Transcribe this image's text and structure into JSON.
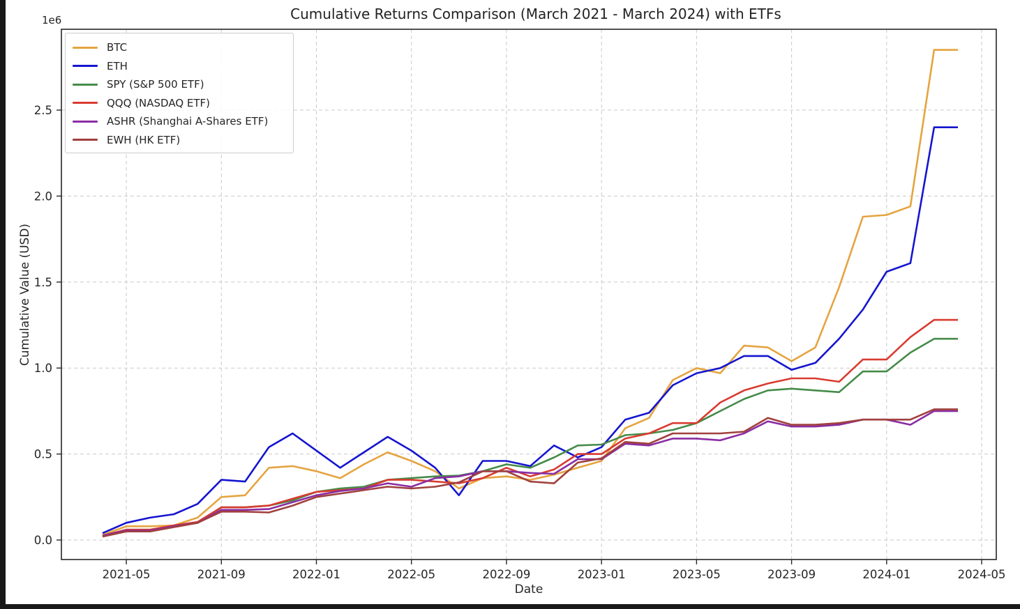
{
  "figure": {
    "title": "Cumulative Returns Comparison (March 2021 - March 2024) with ETFs",
    "y_offset_text": "1e6"
  },
  "chart_data": {
    "type": "line",
    "title": "Cumulative Returns Comparison (March 2021 - March 2024) with ETFs",
    "xlabel": "Date",
    "ylabel": "Cumulative Value (USD)",
    "grid": true,
    "grid_style": "dashed",
    "legend_position": "upper left",
    "values_unit": "million USD (axis multiplier 1e6)",
    "ylim_e6": [
      -0.11,
      2.97
    ],
    "x_tick_labels": [
      "2021-05",
      "2021-09",
      "2022-01",
      "2022-05",
      "2022-09",
      "2023-01",
      "2023-05",
      "2023-09",
      "2024-01",
      "2024-05"
    ],
    "y_tick_labels": [
      "0.0",
      "0.5",
      "1.0",
      "1.5",
      "2.0",
      "2.5"
    ],
    "x_ticks": [
      {
        "label": "2021-05",
        "u": 1
      },
      {
        "label": "2021-09",
        "u": 5
      },
      {
        "label": "2022-01",
        "u": 9
      },
      {
        "label": "2022-05",
        "u": 13
      },
      {
        "label": "2022-09",
        "u": 17
      },
      {
        "label": "2023-01",
        "u": 21
      },
      {
        "label": "2023-05",
        "u": 25
      },
      {
        "label": "2023-09",
        "u": 29
      },
      {
        "label": "2024-01",
        "u": 33
      },
      {
        "label": "2024-05",
        "u": 37
      }
    ],
    "y_ticks": [
      {
        "label": "0.0",
        "v": 0.0
      },
      {
        "label": "0.5",
        "v": 0.5
      },
      {
        "label": "1.0",
        "v": 1.0
      },
      {
        "label": "1.5",
        "v": 1.5
      },
      {
        "label": "2.0",
        "v": 2.0
      },
      {
        "label": "2.5",
        "v": 2.5
      }
    ],
    "x": [
      "2021-03",
      "2021-04",
      "2021-05",
      "2021-06",
      "2021-07",
      "2021-08",
      "2021-09",
      "2021-10",
      "2021-11",
      "2021-12",
      "2022-01",
      "2022-02",
      "2022-03",
      "2022-04",
      "2022-05",
      "2022-06",
      "2022-07",
      "2022-08",
      "2022-09",
      "2022-10",
      "2022-11",
      "2022-12",
      "2023-01",
      "2023-02",
      "2023-03",
      "2023-04",
      "2023-05",
      "2023-06",
      "2023-07",
      "2023-08",
      "2023-09",
      "2023-10",
      "2023-11",
      "2023-12",
      "2024-01",
      "2024-02",
      "2024-03"
    ],
    "series": [
      {
        "name": "BTC",
        "color": "#e5a440",
        "values_e6": [
          0.03,
          0.08,
          0.08,
          0.085,
          0.13,
          0.25,
          0.26,
          0.42,
          0.43,
          0.4,
          0.36,
          0.44,
          0.51,
          0.46,
          0.4,
          0.3,
          0.36,
          0.37,
          0.35,
          0.38,
          0.42,
          0.46,
          0.65,
          0.71,
          0.93,
          1.0,
          0.97,
          1.13,
          1.12,
          1.04,
          1.12,
          1.47,
          1.88,
          1.89,
          1.94,
          2.85,
          2.85
        ]
      },
      {
        "name": "ETH",
        "color": "#1515d0",
        "values_e6": [
          0.04,
          0.1,
          0.13,
          0.15,
          0.21,
          0.35,
          0.34,
          0.54,
          0.62,
          0.52,
          0.42,
          0.51,
          0.6,
          0.52,
          0.42,
          0.26,
          0.46,
          0.46,
          0.43,
          0.55,
          0.48,
          0.54,
          0.7,
          0.74,
          0.9,
          0.97,
          1.0,
          1.07,
          1.07,
          0.99,
          1.03,
          1.17,
          1.34,
          1.56,
          1.61,
          2.4,
          2.4
        ]
      },
      {
        "name": "SPY (S&P 500 ETF)",
        "color": "#458b49",
        "values_e6": [
          0.025,
          0.06,
          0.06,
          0.08,
          0.1,
          0.19,
          0.19,
          0.2,
          0.23,
          0.28,
          0.3,
          0.31,
          0.35,
          0.36,
          0.37,
          0.375,
          0.4,
          0.44,
          0.42,
          0.48,
          0.55,
          0.555,
          0.61,
          0.62,
          0.64,
          0.68,
          0.75,
          0.82,
          0.87,
          0.88,
          0.87,
          0.86,
          0.98,
          0.98,
          1.09,
          1.17,
          1.17
        ]
      },
      {
        "name": "QQQ (NASDAQ ETF)",
        "color": "#d93b30",
        "values_e6": [
          0.025,
          0.06,
          0.06,
          0.085,
          0.105,
          0.19,
          0.19,
          0.2,
          0.24,
          0.28,
          0.29,
          0.3,
          0.35,
          0.35,
          0.34,
          0.33,
          0.36,
          0.42,
          0.37,
          0.41,
          0.5,
          0.5,
          0.59,
          0.62,
          0.68,
          0.68,
          0.8,
          0.87,
          0.91,
          0.94,
          0.94,
          0.92,
          1.05,
          1.05,
          1.18,
          1.28,
          1.28
        ]
      },
      {
        "name": "ASHR (Shanghai A-Shares ETF)",
        "color": "#8a2da3",
        "values_e6": [
          0.025,
          0.055,
          0.055,
          0.08,
          0.1,
          0.175,
          0.175,
          0.18,
          0.22,
          0.26,
          0.285,
          0.3,
          0.33,
          0.31,
          0.36,
          0.37,
          0.4,
          0.4,
          0.39,
          0.385,
          0.47,
          0.47,
          0.56,
          0.55,
          0.59,
          0.59,
          0.58,
          0.62,
          0.69,
          0.66,
          0.66,
          0.67,
          0.7,
          0.7,
          0.67,
          0.75,
          0.75
        ]
      },
      {
        "name": "EWH (HK ETF)",
        "color": "#a0403d",
        "values_e6": [
          0.02,
          0.05,
          0.05,
          0.075,
          0.1,
          0.165,
          0.165,
          0.16,
          0.2,
          0.25,
          0.27,
          0.29,
          0.31,
          0.3,
          0.31,
          0.335,
          0.4,
          0.4,
          0.34,
          0.33,
          0.45,
          0.475,
          0.57,
          0.56,
          0.62,
          0.62,
          0.62,
          0.63,
          0.71,
          0.67,
          0.67,
          0.68,
          0.7,
          0.7,
          0.7,
          0.76,
          0.76
        ]
      }
    ],
    "style": {
      "grid_color": "#c9c9c9",
      "spine_color": "#262626",
      "text_color": "#262626",
      "figure_bg": "#ffffff",
      "page_bg": "#191919",
      "line_width": 2.6
    }
  }
}
